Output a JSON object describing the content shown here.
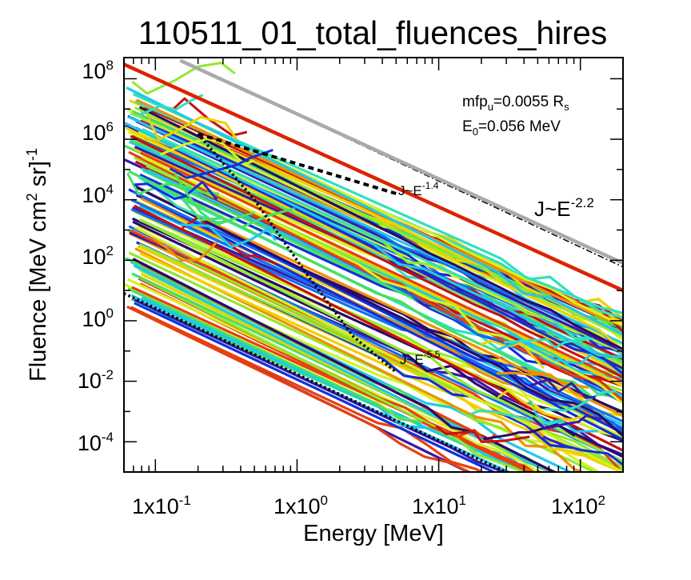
{
  "chart_data": {
    "type": "line",
    "title": "110511_01_total_fluences_hires",
    "xlabel": "Energy [MeV]",
    "ylabel": {
      "prefix": "Fluence [MeV cm",
      "sup1": "2",
      "middle": " sr]",
      "sup2": "-1"
    },
    "xscale": "log",
    "yscale": "log",
    "xlim": [
      0.06,
      200
    ],
    "ylim": [
      1e-05,
      500000000
    ],
    "x_ticks": [
      {
        "value": 0.1,
        "base": "1x10",
        "exp": "-1"
      },
      {
        "value": 1,
        "base": "1x10",
        "exp": "0"
      },
      {
        "value": 10,
        "base": "1x10",
        "exp": "1"
      },
      {
        "value": 100,
        "base": "1x10",
        "exp": "2"
      }
    ],
    "y_ticks": [
      {
        "value": 0.0001,
        "base": "10",
        "exp": "-4"
      },
      {
        "value": 0.01,
        "base": "10",
        "exp": "-2"
      },
      {
        "value": 1,
        "base": "10",
        "exp": "0"
      },
      {
        "value": 100,
        "base": "10",
        "exp": "2"
      },
      {
        "value": 10000,
        "base": "10",
        "exp": "4"
      },
      {
        "value": 1000000,
        "base": "10",
        "exp": "6"
      },
      {
        "value": 100000000,
        "base": "10",
        "exp": "8"
      }
    ],
    "grid": false,
    "params": {
      "mfp_base": "mfp",
      "mfp_sub": "u",
      "mfp_value": "=0.0055 R",
      "mfp_unit_sub": "s",
      "e0_base": "E",
      "e0_sub": "0",
      "e0_value": "=0.056 MeV"
    },
    "reference_lines": [
      {
        "label_base": "J~E",
        "label_exp": "-2.2",
        "style": "dash-dot",
        "color": "#000000",
        "x": [
          0.15,
          200
        ],
        "y": [
          400000000,
          60
        ]
      },
      {
        "label_base": "",
        "label_exp": "",
        "style": "solid-thick",
        "color": "#aaaaaa",
        "x": [
          0.15,
          200
        ],
        "y": [
          400000000,
          80
        ]
      },
      {
        "label_base": "J~E",
        "label_exp": "-1.4",
        "style": "dashed",
        "color": "#000000",
        "x": [
          0.2,
          5
        ],
        "y": [
          1500000,
          16000
        ]
      },
      {
        "label_base": "J~E",
        "label_exp": "-5.5",
        "style": "dotted",
        "color": "#000000",
        "x": [
          0.2,
          0.5,
          1.2,
          2.5,
          5
        ],
        "y": [
          1500000,
          10000,
          30,
          0.3,
          0.02
        ]
      },
      {
        "label_base": "",
        "label_exp": "",
        "style": "dotted",
        "color": "#000000",
        "x": [
          0.06,
          30
        ],
        "y": [
          8,
          1e-05
        ]
      },
      {
        "label_base": "",
        "label_exp": "",
        "style": "solid-thick",
        "color": "#dd2200",
        "x": [
          0.06,
          200
        ],
        "y": [
          300000000,
          10
        ]
      }
    ],
    "series_colors": [
      "#2a0a6e",
      "#3a1aa8",
      "#1030e0",
      "#1070f0",
      "#20c8e8",
      "#30e0c0",
      "#48e060",
      "#90ea30",
      "#d8f020",
      "#f0d000",
      "#f09000",
      "#e84010",
      "#c81010"
    ],
    "family_upper": {
      "count": 64,
      "exponent": -2.2,
      "y_at_xmin_range": [
        100000,
        50000000
      ],
      "cutoff_y": 1e-05
    },
    "family_lower": {
      "count": 56,
      "exponent": -2.2,
      "y_at_xmin_range": [
        3,
        50000
      ],
      "cutoff_y": 1e-05
    },
    "fragments": {
      "count": 28
    }
  }
}
